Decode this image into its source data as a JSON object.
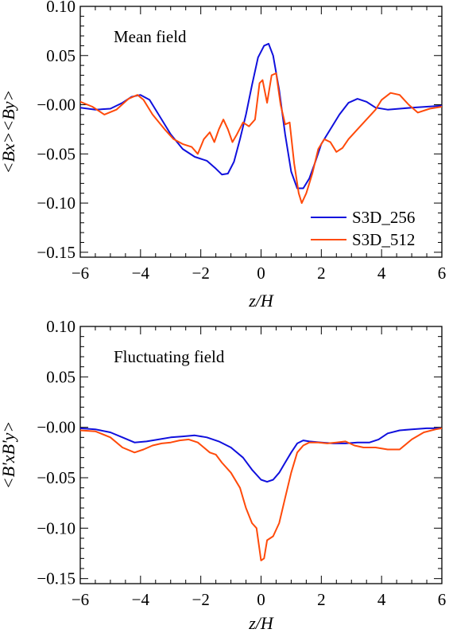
{
  "colors": {
    "s256": "#1010dd",
    "s512": "#ff4a0a"
  },
  "chart_data": [
    {
      "type": "line",
      "panel_label": "Mean field",
      "xlabel": "z/H",
      "ylabel": "<Bx><By>",
      "xlim": [
        -6,
        6
      ],
      "ylim": [
        -0.155,
        0.1
      ],
      "xticks": [
        -6,
        -4,
        -2,
        0,
        2,
        4,
        6
      ],
      "xtick_labels": [
        "−6",
        "−4",
        "−2",
        "0",
        "2",
        "4",
        "6"
      ],
      "yticks": [
        -0.15,
        -0.1,
        -0.05,
        0.0,
        0.05,
        0.1
      ],
      "ytick_labels": [
        "−0.15",
        "−0.10",
        "−0.05",
        "−0.00",
        "0.05",
        "0.10"
      ],
      "legend": {
        "position": "bottom-right",
        "entries": [
          "S3D_256",
          "S3D_512"
        ]
      },
      "series": [
        {
          "name": "S3D_256",
          "color_key": "s256",
          "x": [
            -6,
            -5.5,
            -5,
            -4.6,
            -4.3,
            -4.0,
            -3.7,
            -3.4,
            -3.0,
            -2.6,
            -2.2,
            -1.8,
            -1.5,
            -1.3,
            -1.1,
            -0.9,
            -0.7,
            -0.5,
            -0.3,
            -0.1,
            0.1,
            0.25,
            0.4,
            0.6,
            0.8,
            1.0,
            1.2,
            1.4,
            1.6,
            1.8,
            2.0,
            2.3,
            2.6,
            2.9,
            3.2,
            3.5,
            3.8,
            4.2,
            4.6,
            5.0,
            5.5,
            6
          ],
          "y": [
            -0.003,
            -0.005,
            -0.004,
            0.002,
            0.008,
            0.01,
            0.005,
            -0.01,
            -0.03,
            -0.045,
            -0.053,
            -0.057,
            -0.065,
            -0.071,
            -0.07,
            -0.058,
            -0.035,
            -0.01,
            0.02,
            0.048,
            0.06,
            0.062,
            0.05,
            0.015,
            -0.03,
            -0.068,
            -0.085,
            -0.085,
            -0.075,
            -0.058,
            -0.04,
            -0.025,
            -0.01,
            0.002,
            0.006,
            0.003,
            -0.003,
            -0.005,
            -0.004,
            -0.003,
            -0.002,
            -0.001
          ]
        },
        {
          "name": "S3D_512",
          "color_key": "s512",
          "x": [
            -6,
            -5.6,
            -5.2,
            -4.8,
            -4.4,
            -4.1,
            -3.9,
            -3.6,
            -3.2,
            -2.9,
            -2.6,
            -2.3,
            -2.1,
            -1.9,
            -1.7,
            -1.55,
            -1.4,
            -1.25,
            -1.1,
            -0.95,
            -0.8,
            -0.6,
            -0.4,
            -0.2,
            -0.05,
            0.05,
            0.2,
            0.35,
            0.5,
            0.65,
            0.8,
            0.95,
            1.1,
            1.25,
            1.35,
            1.5,
            1.7,
            1.9,
            2.1,
            2.3,
            2.5,
            2.7,
            2.9,
            3.2,
            3.5,
            3.8,
            4.0,
            4.3,
            4.6,
            4.9,
            5.2,
            5.6,
            6
          ],
          "y": [
            0.003,
            -0.002,
            -0.01,
            -0.005,
            0.006,
            0.01,
            0.005,
            -0.01,
            -0.025,
            -0.035,
            -0.04,
            -0.043,
            -0.05,
            -0.035,
            -0.028,
            -0.038,
            -0.025,
            -0.015,
            -0.025,
            -0.038,
            -0.03,
            -0.018,
            -0.022,
            -0.015,
            0.022,
            0.025,
            0.002,
            0.03,
            0.032,
            0.0,
            -0.02,
            -0.018,
            -0.06,
            -0.09,
            -0.1,
            -0.09,
            -0.07,
            -0.045,
            -0.035,
            -0.038,
            -0.048,
            -0.044,
            -0.035,
            -0.025,
            -0.015,
            -0.005,
            0.005,
            0.012,
            0.01,
            0.0,
            -0.008,
            -0.004,
            -0.002
          ]
        }
      ]
    },
    {
      "type": "line",
      "panel_label": "Fluctuating field",
      "xlabel": "z/H",
      "ylabel": "<B'xB'y>",
      "xlim": [
        -6,
        6
      ],
      "ylim": [
        -0.155,
        0.1
      ],
      "xticks": [
        -6,
        -4,
        -2,
        0,
        2,
        4,
        6
      ],
      "xtick_labels": [
        "−6",
        "−4",
        "−2",
        "0",
        "2",
        "4",
        "6"
      ],
      "yticks": [
        -0.15,
        -0.1,
        -0.05,
        0.0,
        0.05,
        0.1
      ],
      "ytick_labels": [
        "−0.15",
        "−0.10",
        "−0.05",
        "−0.00",
        "0.05",
        "0.10"
      ],
      "series": [
        {
          "name": "S3D_256",
          "color_key": "s256",
          "x": [
            -6,
            -5.5,
            -5.0,
            -4.6,
            -4.2,
            -3.8,
            -3.4,
            -3.0,
            -2.6,
            -2.2,
            -1.8,
            -1.4,
            -1.0,
            -0.6,
            -0.3,
            0.0,
            0.2,
            0.4,
            0.6,
            0.8,
            1.0,
            1.2,
            1.4,
            1.6,
            2.0,
            2.4,
            2.8,
            3.2,
            3.6,
            3.9,
            4.2,
            4.6,
            5.0,
            5.5,
            6
          ],
          "y": [
            -0.001,
            -0.002,
            -0.005,
            -0.01,
            -0.015,
            -0.014,
            -0.012,
            -0.01,
            -0.009,
            -0.008,
            -0.01,
            -0.014,
            -0.02,
            -0.03,
            -0.042,
            -0.052,
            -0.054,
            -0.052,
            -0.045,
            -0.035,
            -0.025,
            -0.016,
            -0.013,
            -0.014,
            -0.015,
            -0.016,
            -0.016,
            -0.015,
            -0.015,
            -0.012,
            -0.006,
            -0.003,
            -0.002,
            -0.001,
            -0.001
          ]
        },
        {
          "name": "S3D_512",
          "color_key": "s512",
          "x": [
            -6,
            -5.5,
            -5.0,
            -4.6,
            -4.2,
            -3.9,
            -3.6,
            -3.3,
            -3.0,
            -2.7,
            -2.4,
            -2.1,
            -1.9,
            -1.7,
            -1.5,
            -1.3,
            -1.0,
            -0.7,
            -0.5,
            -0.3,
            -0.15,
            0.0,
            0.1,
            0.2,
            0.4,
            0.6,
            0.8,
            1.0,
            1.2,
            1.4,
            1.6,
            1.9,
            2.2,
            2.5,
            2.8,
            3.1,
            3.4,
            3.8,
            4.2,
            4.6,
            5.0,
            5.4,
            5.8,
            6
          ],
          "y": [
            -0.003,
            -0.004,
            -0.01,
            -0.02,
            -0.025,
            -0.022,
            -0.018,
            -0.016,
            -0.015,
            -0.013,
            -0.012,
            -0.015,
            -0.02,
            -0.025,
            -0.027,
            -0.035,
            -0.045,
            -0.06,
            -0.08,
            -0.095,
            -0.1,
            -0.132,
            -0.13,
            -0.112,
            -0.108,
            -0.095,
            -0.07,
            -0.045,
            -0.025,
            -0.018,
            -0.015,
            -0.015,
            -0.016,
            -0.015,
            -0.014,
            -0.018,
            -0.02,
            -0.02,
            -0.022,
            -0.022,
            -0.012,
            -0.005,
            -0.002,
            -0.001
          ]
        }
      ]
    }
  ]
}
